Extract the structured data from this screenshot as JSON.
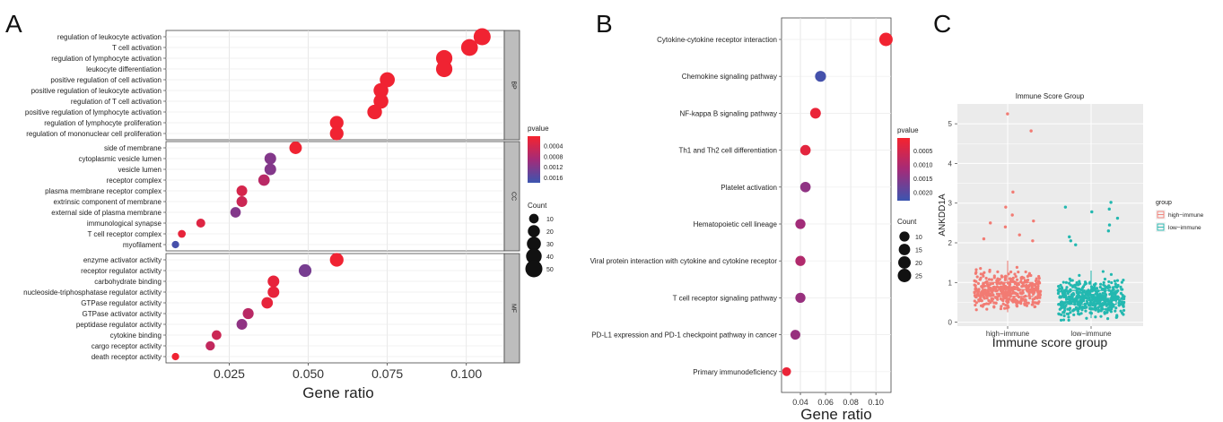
{
  "panels": {
    "a": "A",
    "b": "B",
    "c": "C"
  },
  "chart_data": [
    {
      "type": "scatter",
      "subtype": "dot-plot",
      "xlabel": "Gene ratio",
      "xlim": [
        0.005,
        0.112
      ],
      "xticks": [
        0.025,
        0.05,
        0.075,
        0.1
      ],
      "xtick_labels": [
        "0.025",
        "0.050",
        "0.075",
        "0.100"
      ],
      "grid": true,
      "colors": {
        "low_pvalue": "#e8283a",
        "high_pvalue": "#4456a4"
      },
      "legend": {
        "color_title": "pvalue",
        "color_ticks": [
          "0.0004",
          "0.0008",
          "0.0012",
          "0.0016"
        ],
        "color_tick_values": [
          0.0004,
          0.0008,
          0.0012,
          0.0016
        ],
        "color_range": [
          5e-05,
          0.0018
        ],
        "size_title": "Count",
        "size_values": [
          10,
          20,
          30,
          40,
          50
        ],
        "size_labels": [
          "10",
          "20",
          "30",
          "40",
          "50"
        ],
        "placement": "right"
      },
      "facets": [
        {
          "name": "BP",
          "terms": [
            {
              "label": "regulation of leukocyte activation",
              "x": 0.105,
              "count": 50,
              "p": 0.0001
            },
            {
              "label": "T cell activation",
              "x": 0.101,
              "count": 48,
              "p": 0.0001
            },
            {
              "label": "regulation of lymphocyte activation",
              "x": 0.093,
              "count": 45,
              "p": 0.0001
            },
            {
              "label": "leukocyte differentiation",
              "x": 0.093,
              "count": 45,
              "p": 0.0001
            },
            {
              "label": "positive regulation of cell activation",
              "x": 0.075,
              "count": 36,
              "p": 0.0001
            },
            {
              "label": "positive regulation of leukocyte activation",
              "x": 0.073,
              "count": 35,
              "p": 0.0001
            },
            {
              "label": "regulation of T cell activation",
              "x": 0.073,
              "count": 35,
              "p": 0.0001
            },
            {
              "label": "positive regulation of lymphocyte activation",
              "x": 0.071,
              "count": 34,
              "p": 0.0001
            },
            {
              "label": "regulation of lymphocyte proliferation",
              "x": 0.059,
              "count": 28,
              "p": 0.0001
            },
            {
              "label": "regulation of mononuclear cell proliferation",
              "x": 0.059,
              "count": 28,
              "p": 0.0001
            }
          ]
        },
        {
          "name": "CC",
          "terms": [
            {
              "label": "side of membrane",
              "x": 0.046,
              "count": 22,
              "p": 0.0001
            },
            {
              "label": "cytoplasmic vesicle lumen",
              "x": 0.038,
              "count": 18,
              "p": 0.0012
            },
            {
              "label": "vesicle lumen",
              "x": 0.038,
              "count": 18,
              "p": 0.0012
            },
            {
              "label": "receptor complex",
              "x": 0.036,
              "count": 17,
              "p": 0.0007
            },
            {
              "label": "plasma membrane receptor complex",
              "x": 0.029,
              "count": 14,
              "p": 0.0004
            },
            {
              "label": "extrinsic component of membrane",
              "x": 0.029,
              "count": 14,
              "p": 0.0005
            },
            {
              "label": "external side of plasma membrane",
              "x": 0.027,
              "count": 13,
              "p": 0.0012
            },
            {
              "label": "immunological synapse",
              "x": 0.016,
              "count": 8,
              "p": 0.0003
            },
            {
              "label": "T cell receptor complex",
              "x": 0.01,
              "count": 5,
              "p": 0.0002
            },
            {
              "label": "myofilament",
              "x": 0.008,
              "count": 4,
              "p": 0.0017
            }
          ]
        },
        {
          "name": "MF",
          "terms": [
            {
              "label": "enzyme activator activity",
              "x": 0.059,
              "count": 28,
              "p": 0.0001
            },
            {
              "label": "receptor regulator activity",
              "x": 0.049,
              "count": 23,
              "p": 0.0013
            },
            {
              "label": "carbohydrate binding",
              "x": 0.039,
              "count": 18,
              "p": 0.0002
            },
            {
              "label": "nucleoside-triphosphatase regulator activity",
              "x": 0.039,
              "count": 18,
              "p": 0.0002
            },
            {
              "label": "GTPase regulator activity",
              "x": 0.037,
              "count": 17,
              "p": 0.0002
            },
            {
              "label": "GTPase activator activity",
              "x": 0.031,
              "count": 15,
              "p": 0.0007
            },
            {
              "label": "peptidase regulator activity",
              "x": 0.029,
              "count": 14,
              "p": 0.0011
            },
            {
              "label": "cytokine binding",
              "x": 0.021,
              "count": 10,
              "p": 0.0005
            },
            {
              "label": "cargo receptor activity",
              "x": 0.019,
              "count": 9,
              "p": 0.0006
            },
            {
              "label": "death receptor activity",
              "x": 0.008,
              "count": 4,
              "p": 0.0001
            }
          ]
        }
      ]
    },
    {
      "type": "scatter",
      "subtype": "dot-plot",
      "xlabel": "Gene ratio",
      "xlim": [
        0.025,
        0.112
      ],
      "xticks": [
        0.04,
        0.06,
        0.08,
        0.1
      ],
      "xtick_labels": [
        "0.04",
        "0.06",
        "0.08",
        "0.10"
      ],
      "grid": true,
      "colors": {
        "low_pvalue": "#e8283a",
        "high_pvalue": "#4456a4"
      },
      "legend": {
        "color_title": "pvalue",
        "color_ticks": [
          "0.0005",
          "0.0010",
          "0.0015",
          "0.0020"
        ],
        "color_tick_values": [
          0.0005,
          0.001,
          0.0015,
          0.002
        ],
        "color_range": [
          5e-05,
          0.0023
        ],
        "size_title": "Count",
        "size_values": [
          10,
          15,
          20,
          25
        ],
        "size_labels": [
          "10",
          "15",
          "20",
          "25"
        ],
        "placement": "right"
      },
      "terms": [
        {
          "label": "Cytokine-cytokine receptor interaction",
          "x": 0.108,
          "count": 25,
          "p": 0.0001
        },
        {
          "label": "Chemokine signaling pathway",
          "x": 0.056,
          "count": 13,
          "p": 0.0022
        },
        {
          "label": "NF-kappa B signaling pathway",
          "x": 0.052,
          "count": 12,
          "p": 0.0002
        },
        {
          "label": "Th1 and Th2 cell differentiation",
          "x": 0.044,
          "count": 11,
          "p": 0.0003
        },
        {
          "label": "Platelet activation",
          "x": 0.044,
          "count": 11,
          "p": 0.0014
        },
        {
          "label": "Hematopoietic cell lineage",
          "x": 0.04,
          "count": 10,
          "p": 0.0012
        },
        {
          "label": "Viral protein interaction with cytokine and cytokine receptor",
          "x": 0.04,
          "count": 10,
          "p": 0.001
        },
        {
          "label": "T cell receptor signaling pathway",
          "x": 0.04,
          "count": 10,
          "p": 0.0013
        },
        {
          "label": "PD-L1 expression and PD-1 checkpoint pathway in cancer",
          "x": 0.036,
          "count": 9,
          "p": 0.0013
        },
        {
          "label": "Primary immunodeficiency",
          "x": 0.029,
          "count": 6,
          "p": 0.0002
        }
      ]
    },
    {
      "type": "scatter",
      "subtype": "box-jitter",
      "title": "Immune Score Group",
      "xlabel": "Immune score group",
      "ylabel": "ANKDD1A",
      "categories": [
        "high−immune",
        "low−immune"
      ],
      "ylim": [
        -0.1,
        5.5
      ],
      "yticks": [
        0,
        1,
        2,
        3,
        4,
        5
      ],
      "ytick_labels": [
        "0",
        "1",
        "2",
        "3",
        "4",
        "5"
      ],
      "grid": true,
      "background": "#ebebeb",
      "colors": {
        "high": "#f27b73",
        "low": "#23b8b0"
      },
      "legend": {
        "title": "group",
        "entries": [
          "high−immune",
          "low−immune"
        ],
        "placement": "right"
      },
      "boxes": [
        {
          "name": "high−immune",
          "q1": 0.65,
          "median": 0.82,
          "q3": 1.0,
          "whisker_low": 0.25,
          "whisker_high": 1.55
        },
        {
          "name": "low−immune",
          "q1": 0.45,
          "median": 0.6,
          "q3": 0.8,
          "whisker_low": 0.1,
          "whisker_high": 1.3
        }
      ],
      "outliers": {
        "high−immune": [
          5.25,
          4.82,
          3.28,
          2.9,
          2.7,
          2.55,
          2.5,
          2.4,
          2.2,
          2.1,
          2.05
        ],
        "low−immune": [
          3.02,
          2.9,
          2.85,
          2.78,
          2.62,
          2.45,
          2.3,
          2.15,
          2.05,
          1.95
        ]
      }
    }
  ]
}
